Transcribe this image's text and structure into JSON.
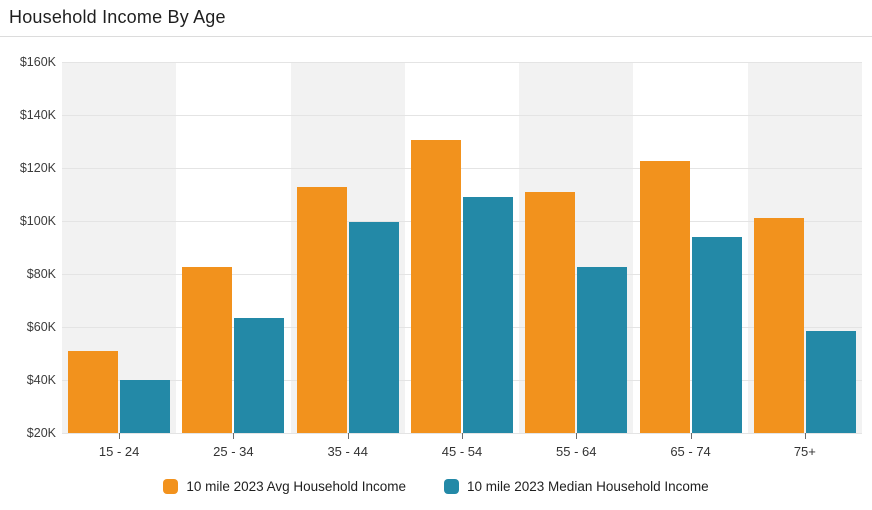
{
  "header": {
    "title": "Household Income By Age"
  },
  "chart_data": {
    "type": "bar",
    "title": "Household Income By Age",
    "categories": [
      "15 - 24",
      "25 - 34",
      "35 - 44",
      "45 - 54",
      "55 - 64",
      "65 - 74",
      "75+"
    ],
    "series": [
      {
        "name": "10 mile 2023 Avg Household Income",
        "color": "#f2921d",
        "values": [
          51000,
          82500,
          113000,
          130500,
          111000,
          122500,
          101000
        ]
      },
      {
        "name": "10 mile 2023 Median Household Income",
        "color": "#2389a7",
        "values": [
          40000,
          63500,
          99500,
          109000,
          82500,
          94000,
          58500
        ]
      }
    ],
    "xlabel": "",
    "ylabel": "",
    "ylim": [
      20000,
      160000
    ],
    "y_ticks": [
      {
        "value": 160000,
        "label": "$160K"
      },
      {
        "value": 140000,
        "label": "$140K"
      },
      {
        "value": 120000,
        "label": "$120K"
      },
      {
        "value": 100000,
        "label": "$100K"
      },
      {
        "value": 80000,
        "label": "$80K"
      },
      {
        "value": 60000,
        "label": "$60K"
      },
      {
        "value": 40000,
        "label": "$40K"
      },
      {
        "value": 20000,
        "label": "$20K"
      }
    ],
    "legend_position": "bottom",
    "grid": true,
    "band_fill_odd": "#f2f2f2",
    "band_fill_even": "#ffffff"
  }
}
